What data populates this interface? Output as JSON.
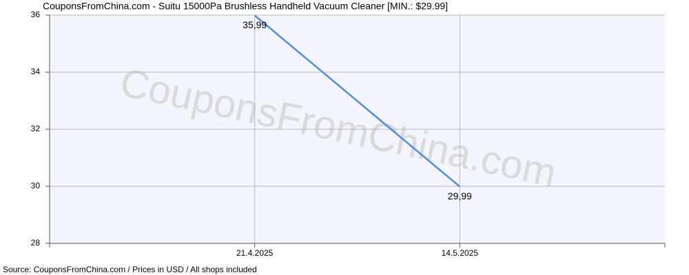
{
  "chart_data": {
    "type": "line",
    "title": "CouponsFromChina.com - Suitu 15000Pa Brushless Handheld Vacuum Cleaner [MIN.: $29.99]",
    "watermark": "CouponsFromChina.com",
    "source": "Source: CouponsFromChina.com / Prices in USD / All shops included",
    "categories": [
      "21.4.2025",
      "14.5.2025"
    ],
    "values": [
      35.99,
      29.99
    ],
    "value_labels": [
      "35,99",
      "29,99"
    ],
    "color": "#4a8ce6",
    "ylim": [
      28,
      36
    ],
    "yticks": [
      28,
      30,
      32,
      34,
      36
    ],
    "grid": true
  }
}
